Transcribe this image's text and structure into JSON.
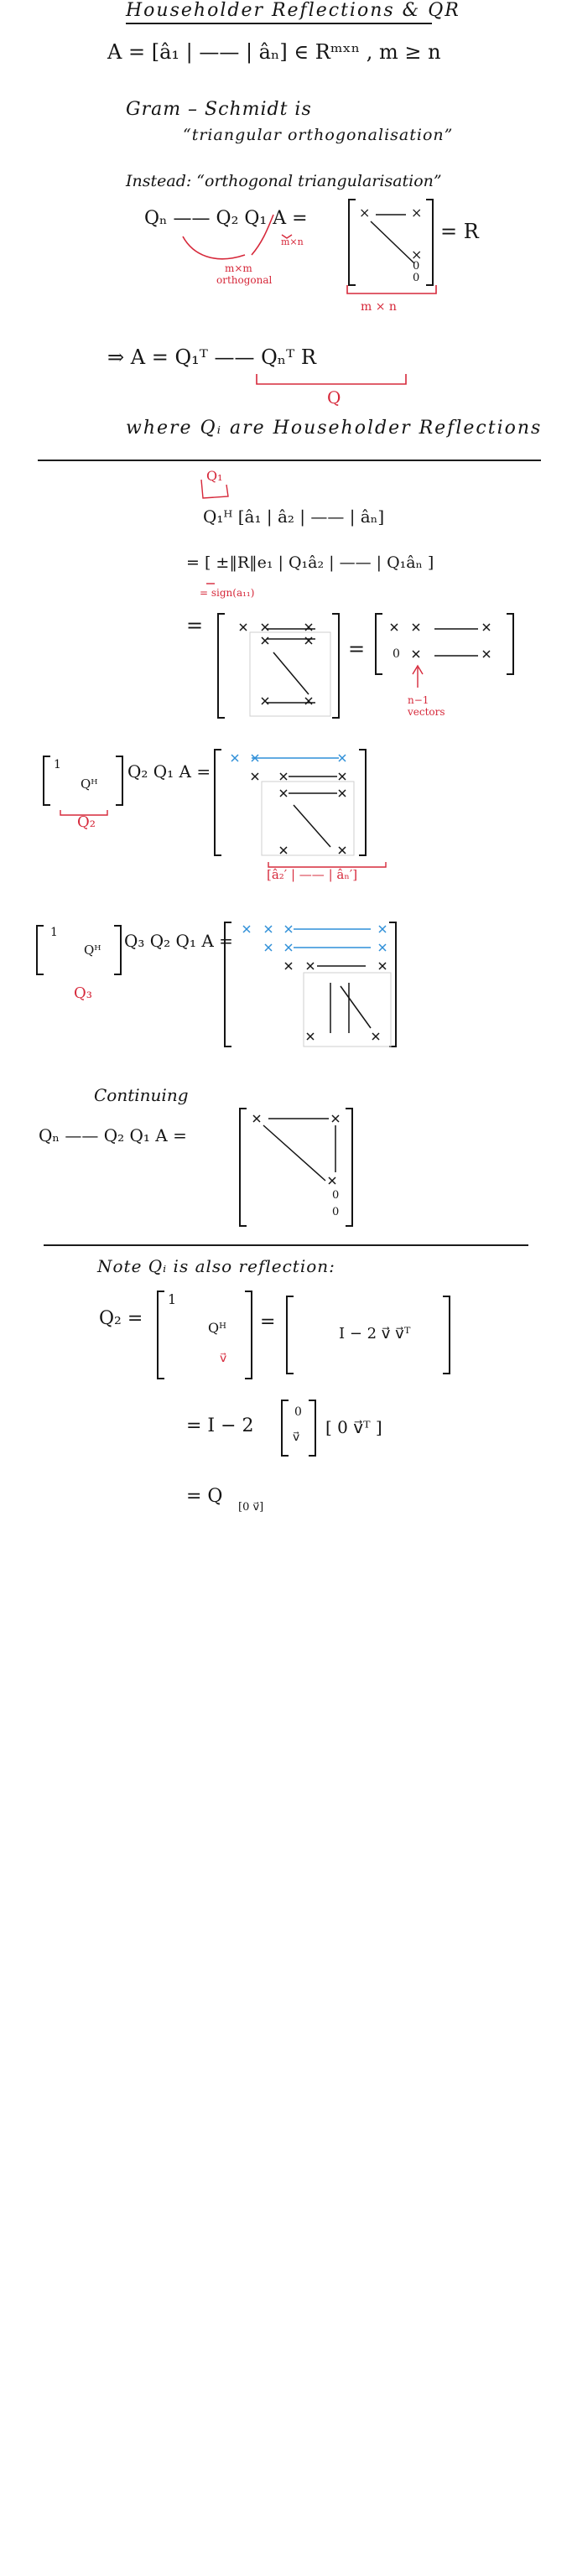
{
  "title": "Householder Reflections & QR",
  "line_A": "A = [â₁ | —— | âₙ] ∈ Rᵐˣⁿ ,   m ≥ n",
  "gram_schmidt": "Gram – Schmidt   is",
  "gram_schmidt_2": "“triangular   orthogonalisation”",
  "instead": "Instead:  “orthogonal triangularisation”",
  "qform": "Qₙ ——  Q₂ Q₁ A   =",
  "eq_R": "= R",
  "note_mxm": "m×m",
  "note_orthogonal": "orthogonal",
  "note_mxn_small": "m×n",
  "note_mxn": "m × n",
  "implies_A": "⇒     A =  Q₁ᵀ —— Qₙᵀ R",
  "under_Q": "Q",
  "where_line": "where    Qᵢ   are   Householder   Reflections",
  "q1_label": "Q₁",
  "q1_line": "Q₁ᴴ   [â₁ | â₂ | —— | âₙ]",
  "q1_line2": "= [ ±‖R‖e₁ | Q₁â₂ | —— | Q₁âₙ ]",
  "sign_note": "= sign(a₁₁)",
  "eq_sign": "=",
  "vectors_note": "n−1\nvectors",
  "step2_lhs": "Q₂ Q₁ A   =",
  "q2_label": "Q₂",
  "step2_cols": "[â₂′ | —— | âₙ′]",
  "step3_lhs": "Q₃ Q₂ Q₁ A  =",
  "q3_label": "Q₃",
  "continuing": "Continuing",
  "cont_line": "Qₙ ——  Q₂ Q₁ A   =",
  "note_line": "Note    Qᵢ   is   also   reflection:",
  "q2_def": "Q₂ =",
  "q2_rhs": "I − 2 v⃗ v⃗ᵀ",
  "q2_exp": "= I − 2",
  "q2_exp_row": "[ 0   v⃗ᵀ ]",
  "q2_final": "= Q",
  "q2_final_sub": "[0 v⃗]",
  "inner_Q2H": "Qᴴ",
  "inner_sub": "â₂′",
  "inner_v": "v⃗",
  "one": "1",
  "zero": "0",
  "x": "×",
  "colors": {
    "ink": "#141414",
    "annotation": "#d6283a",
    "highlight": "#2f8fd8"
  }
}
